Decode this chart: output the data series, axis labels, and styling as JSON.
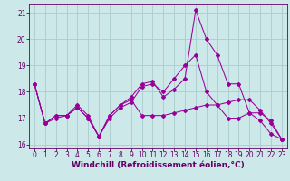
{
  "xlabel": "Windchill (Refroidissement éolien,°C)",
  "x": [
    0,
    1,
    2,
    3,
    4,
    5,
    6,
    7,
    8,
    9,
    10,
    11,
    12,
    13,
    14,
    15,
    16,
    17,
    18,
    19,
    20,
    21,
    22,
    23
  ],
  "line1": [
    18.3,
    16.8,
    17.1,
    17.1,
    17.5,
    17.1,
    16.3,
    17.1,
    17.5,
    17.8,
    18.3,
    18.4,
    17.8,
    18.1,
    18.5,
    21.1,
    20.0,
    19.4,
    18.3,
    18.3,
    17.2,
    16.9,
    16.4,
    16.2
  ],
  "line2": [
    18.3,
    16.8,
    17.1,
    17.1,
    17.4,
    17.0,
    16.3,
    17.0,
    17.4,
    17.6,
    18.2,
    18.3,
    18.0,
    18.5,
    19.0,
    19.4,
    18.0,
    17.5,
    17.0,
    17.0,
    17.2,
    17.2,
    16.9,
    16.2
  ],
  "line3": [
    18.3,
    16.8,
    17.0,
    17.1,
    17.4,
    17.0,
    16.3,
    17.1,
    17.5,
    17.7,
    17.1,
    17.1,
    17.1,
    17.2,
    17.3,
    17.4,
    17.5,
    17.5,
    17.6,
    17.7,
    17.7,
    17.3,
    16.8,
    16.2
  ],
  "line_color": "#990099",
  "bg_color": "#cce8e8",
  "grid_color": "#aacccc",
  "ylim": [
    15.85,
    21.35
  ],
  "yticks": [
    16,
    17,
    18,
    19,
    20,
    21
  ],
  "xticks": [
    0,
    1,
    2,
    3,
    4,
    5,
    6,
    7,
    8,
    9,
    10,
    11,
    12,
    13,
    14,
    15,
    16,
    17,
    18,
    19,
    20,
    21,
    22,
    23
  ],
  "axis_color": "#660066",
  "tick_fontsize": 5.5,
  "xlabel_fontsize": 6.5,
  "markersize": 2.0,
  "linewidth": 0.75
}
